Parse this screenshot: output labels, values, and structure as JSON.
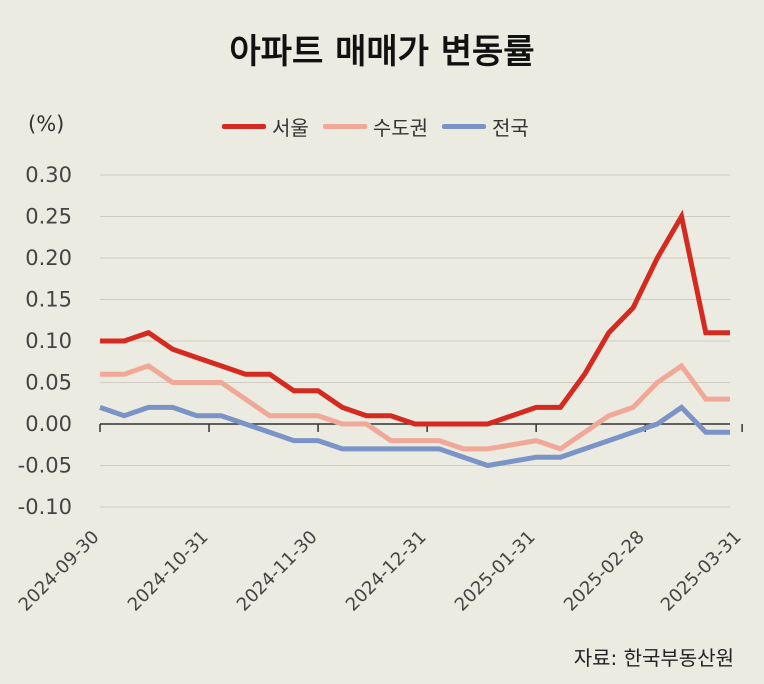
{
  "title": "아파트 매매가 변동률",
  "unit_label": "(%)",
  "source": "자료: 한국부동산원",
  "chart_data": {
    "type": "line",
    "title": "아파트 매매가 변동률",
    "ylabel": "(%)",
    "xlabel": "",
    "ylim": [
      -0.1,
      0.3
    ],
    "yticks": [
      0.3,
      0.25,
      0.2,
      0.15,
      0.1,
      0.05,
      0.0,
      -0.05,
      -0.1
    ],
    "ytick_labels": [
      "0.30",
      "0.25",
      "0.20",
      "0.15",
      "0.10",
      "0.05",
      "0.00",
      "-0.05",
      "-0.10"
    ],
    "xtick_labels": [
      "2024-09-30",
      "2024-10-31",
      "2024-11-30",
      "2024-12-31",
      "2025-01-31",
      "2025-02-28",
      "2025-03-31"
    ],
    "xtick_positions": [
      0,
      4.5,
      9,
      13.5,
      18,
      22.5,
      26.5
    ],
    "grid": true,
    "legend_position": "top",
    "series": [
      {
        "name": "서울",
        "color": "#d42a20",
        "values": [
          0.1,
          0.1,
          0.11,
          0.09,
          0.08,
          0.07,
          0.06,
          0.06,
          0.04,
          0.04,
          0.02,
          0.01,
          0.01,
          0.0,
          0.0,
          0.0,
          0.0,
          0.01,
          0.02,
          0.02,
          0.06,
          0.11,
          0.14,
          0.2,
          0.25,
          0.11,
          0.11
        ]
      },
      {
        "name": "수도권",
        "color": "#f0a898",
        "values": [
          0.06,
          0.06,
          0.07,
          0.05,
          0.05,
          0.05,
          0.03,
          0.01,
          0.01,
          0.01,
          0.0,
          0.0,
          -0.02,
          -0.02,
          -0.02,
          -0.03,
          -0.03,
          -0.025,
          -0.02,
          -0.03,
          -0.01,
          0.01,
          0.02,
          0.05,
          0.07,
          0.03,
          0.03
        ]
      },
      {
        "name": "전국",
        "color": "#7a94c8",
        "values": [
          0.02,
          0.01,
          0.02,
          0.02,
          0.01,
          0.01,
          0.0,
          -0.01,
          -0.02,
          -0.02,
          -0.03,
          -0.03,
          -0.03,
          -0.03,
          -0.03,
          -0.04,
          -0.05,
          -0.045,
          -0.04,
          -0.04,
          -0.03,
          -0.02,
          -0.01,
          0.0,
          0.02,
          -0.01,
          -0.01
        ]
      }
    ]
  }
}
